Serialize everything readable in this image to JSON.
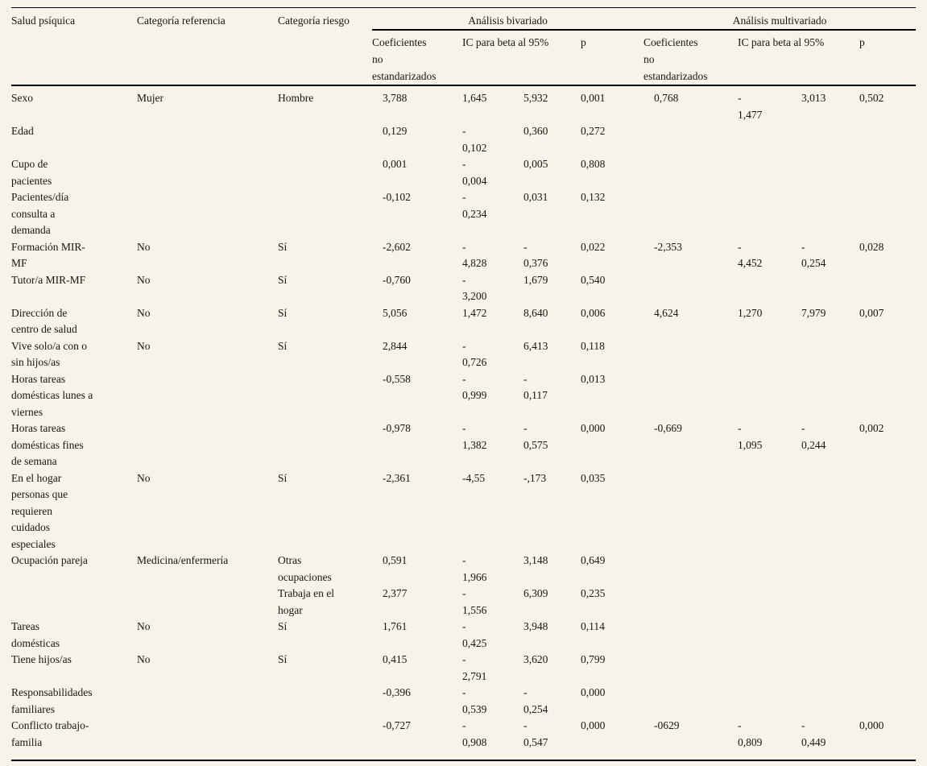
{
  "table": {
    "header": {
      "variable": "Salud psíquica",
      "reference": "Categoría referencia",
      "risk": "Categoría riesgo",
      "bivariate": "Análisis bivariado",
      "multivariate": "Análisis multivariado",
      "coef": "Coeficientes\nno\nestandarizados",
      "ic": "IC para beta al 95%",
      "p": "p"
    },
    "rows": [
      {
        "label": "Sexo",
        "ref": "Mujer",
        "risk": "Hombre",
        "biv": {
          "coef": "3,788",
          "low": "1,645",
          "high": "5,932",
          "p": "0,001"
        },
        "multi": {
          "coef": "0,768",
          "low": "-\n1,477",
          "high": "3,013",
          "p": "0,502"
        }
      },
      {
        "label": "Edad",
        "ref": "",
        "risk": "",
        "biv": {
          "coef": "0,129",
          "low": "-\n0,102",
          "high": "0,360",
          "p": "0,272"
        },
        "multi": {
          "coef": "",
          "low": "",
          "high": "",
          "p": ""
        }
      },
      {
        "label": "Cupo de\npacientes",
        "ref": "",
        "risk": "",
        "biv": {
          "coef": "0,001",
          "low": "-\n0,004",
          "high": "0,005",
          "p": "0,808"
        },
        "multi": {
          "coef": "",
          "low": "",
          "high": "",
          "p": ""
        }
      },
      {
        "label": "Pacientes/día\nconsulta a\ndemanda",
        "ref": "",
        "risk": "",
        "biv": {
          "coef": "-0,102",
          "low": "-\n0,234",
          "high": "0,031",
          "p": "0,132"
        },
        "multi": {
          "coef": "",
          "low": "",
          "high": "",
          "p": ""
        }
      },
      {
        "label": "Formación MIR-\nMF",
        "ref": "No",
        "risk": "Sí",
        "biv": {
          "coef": "-2,602",
          "low": "-\n4,828",
          "high": "-\n0,376",
          "p": "0,022"
        },
        "multi": {
          "coef": "-2,353",
          "low": "-\n4,452",
          "high": "-\n0,254",
          "p": "0,028"
        }
      },
      {
        "label": "Tutor/a MIR-MF",
        "ref": "No",
        "risk": "Sí",
        "biv": {
          "coef": "-0,760",
          "low": "-\n3,200",
          "high": "1,679",
          "p": "0,540"
        },
        "multi": {
          "coef": "",
          "low": "",
          "high": "",
          "p": ""
        }
      },
      {
        "label": "Dirección de\ncentro de salud",
        "ref": "No",
        "risk": "Sí",
        "biv": {
          "coef": "5,056",
          "low": "1,472",
          "high": "8,640",
          "p": "0,006"
        },
        "multi": {
          "coef": "4,624",
          "low": "1,270",
          "high": "7,979",
          "p": "0,007"
        }
      },
      {
        "label": "Vive solo/a con o\nsin hijos/as",
        "ref": "No",
        "risk": "Sí",
        "biv": {
          "coef": "2,844",
          "low": "-\n0,726",
          "high": "6,413",
          "p": "0,118"
        },
        "multi": {
          "coef": "",
          "low": "",
          "high": "",
          "p": ""
        }
      },
      {
        "label": "Horas tareas\ndomésticas lunes a\nviernes",
        "ref": "",
        "risk": "",
        "biv": {
          "coef": "-0,558",
          "low": "-\n0,999",
          "high": "-\n0,117",
          "p": "0,013"
        },
        "multi": {
          "coef": "",
          "low": "",
          "high": "",
          "p": ""
        }
      },
      {
        "label": "Horas tareas\ndomésticas fines\nde semana",
        "ref": "",
        "risk": "",
        "biv": {
          "coef": "-0,978",
          "low": "-\n1,382",
          "high": "-\n0,575",
          "p": "0,000"
        },
        "multi": {
          "coef": "-0,669",
          "low": "-\n1,095",
          "high": "-\n0,244",
          "p": "0,002"
        }
      },
      {
        "label": "En el hogar\npersonas que\nrequieren\ncuidados\nespeciales",
        "ref": "No",
        "risk": "Sí",
        "biv": {
          "coef": "-2,361",
          "low": "-4,55",
          "high": "-,173",
          "p": "0,035"
        },
        "multi": {
          "coef": "",
          "low": "",
          "high": "",
          "p": ""
        }
      },
      {
        "label": "Ocupación pareja",
        "ref": "Medicina/enfermería",
        "risk": "Otras\nocupaciones",
        "biv": {
          "coef": "0,591",
          "low": "-\n1,966",
          "high": "3,148",
          "p": "0,649"
        },
        "multi": {
          "coef": "",
          "low": "",
          "high": "",
          "p": ""
        }
      },
      {
        "label": "",
        "ref": "",
        "risk": "Trabaja en el\nhogar",
        "biv": {
          "coef": "2,377",
          "low": "-\n1,556",
          "high": "6,309",
          "p": "0,235"
        },
        "multi": {
          "coef": "",
          "low": "",
          "high": "",
          "p": ""
        }
      },
      {
        "label": "Tareas\ndomésticas",
        "ref": "No",
        "risk": "Sí",
        "biv": {
          "coef": "1,761",
          "low": "-\n0,425",
          "high": "3,948",
          "p": "0,114"
        },
        "multi": {
          "coef": "",
          "low": "",
          "high": "",
          "p": ""
        }
      },
      {
        "label": "Tiene hijos/as",
        "ref": "No",
        "risk": "Sí",
        "biv": {
          "coef": "0,415",
          "low": "-\n2,791",
          "high": "3,620",
          "p": "0,799"
        },
        "multi": {
          "coef": "",
          "low": "",
          "high": "",
          "p": ""
        }
      },
      {
        "label": "Responsabilidades\nfamiliares",
        "ref": "",
        "risk": "",
        "biv": {
          "coef": "-0,396",
          "low": "-\n0,539",
          "high": "-\n0,254",
          "p": "0,000"
        },
        "multi": {
          "coef": "",
          "low": "",
          "high": "",
          "p": ""
        }
      },
      {
        "label": "Conflicto trabajo-\nfamilia",
        "ref": "",
        "risk": "",
        "biv": {
          "coef": "-0,727",
          "low": "-\n0,908",
          "high": "-\n0,547",
          "p": "0,000"
        },
        "multi": {
          "coef": "-0629",
          "low": "-\n0,809",
          "high": "-\n0,449",
          "p": "0,000"
        }
      }
    ]
  }
}
